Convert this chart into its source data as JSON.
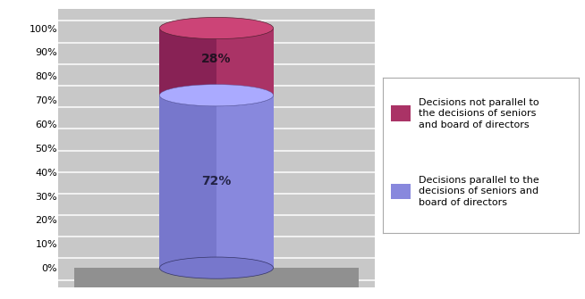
{
  "values": [
    72,
    28
  ],
  "blue_body": "#8888dd",
  "blue_left": "#7777cc",
  "blue_top": "#aaaaff",
  "red_body": "#aa3366",
  "red_left": "#882255",
  "red_top": "#cc4477",
  "labels": [
    "72%",
    "28%"
  ],
  "legend_labels": [
    "Decisions not parallel to\nthe decisions of seniors\nand board of directors",
    "Decisions parallel to the\ndecisions of seniors and\nboard of directors"
  ],
  "legend_colors": [
    "#aa3366",
    "#8888dd"
  ],
  "yticks": [
    0,
    10,
    20,
    30,
    40,
    50,
    60,
    70,
    80,
    90,
    100
  ],
  "bg_light": "#c8c8c8",
  "bg_stripe": "#b0b0b0",
  "floor_color": "#909090",
  "wall_color": "#c0c0c0",
  "font_size_pct": 10,
  "font_size_tick": 8,
  "font_size_legend": 8
}
